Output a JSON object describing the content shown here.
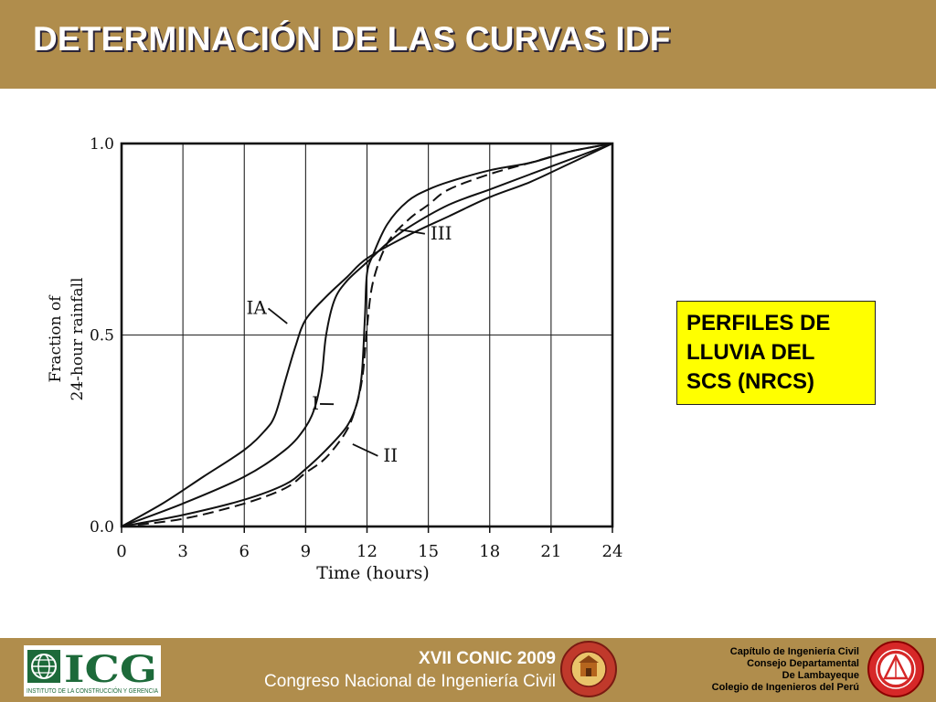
{
  "slide": {
    "title": "DETERMINACIÓN DE LAS CURVAS IDF",
    "callout_lines": [
      "PERFILES DE",
      "LLUVIA DEL",
      "SCS (NRCS)"
    ]
  },
  "footer": {
    "icg_logo_text": "ICG",
    "icg_tagline": "INSTITUTO DE LA CONSTRUCCIÓN Y GERENCIA",
    "conference_line1": "XVII  CONIC 2009",
    "conference_line2": "Congreso Nacional de Ingeniería Civil",
    "chapter_lines": [
      "Capítulo de Ingeniería Civil",
      "Consejo Departamental",
      "De Lambayeque",
      "Colegio de Ingenieros del Perú"
    ],
    "accent_color": "#b08d4c"
  },
  "chart_data": {
    "type": "line",
    "xlabel": "Time (hours)",
    "ylabel_lines": [
      "Fraction of",
      "24-hour rainfall"
    ],
    "xlim": [
      0,
      24
    ],
    "ylim": [
      0,
      1
    ],
    "x_ticks": [
      "0",
      "3",
      "6",
      "9",
      "12",
      "15",
      "18",
      "21",
      "24"
    ],
    "y_ticks": [
      "0.0",
      "0.5",
      "1.0"
    ],
    "grid": true,
    "series": [
      {
        "name": "IA",
        "dashed": false,
        "x": [
          0,
          2,
          4,
          6,
          7,
          7.5,
          8,
          8.5,
          9,
          10,
          11,
          12,
          14,
          16,
          18,
          20,
          22,
          24
        ],
        "y": [
          0,
          0.06,
          0.13,
          0.2,
          0.25,
          0.29,
          0.38,
          0.47,
          0.54,
          0.6,
          0.65,
          0.7,
          0.76,
          0.81,
          0.86,
          0.9,
          0.95,
          1.0
        ]
      },
      {
        "name": "I",
        "dashed": false,
        "x": [
          0,
          3,
          6,
          8,
          9,
          9.5,
          9.8,
          10,
          10.4,
          11,
          12,
          13,
          14,
          16,
          18,
          20,
          22,
          24
        ],
        "y": [
          0,
          0.06,
          0.13,
          0.2,
          0.26,
          0.32,
          0.4,
          0.5,
          0.59,
          0.64,
          0.69,
          0.74,
          0.78,
          0.84,
          0.88,
          0.92,
          0.96,
          1.0
        ]
      },
      {
        "name": "II",
        "dashed": false,
        "x": [
          0,
          3,
          6,
          8,
          9,
          10,
          11,
          11.5,
          11.75,
          11.9,
          12,
          12.3,
          13,
          14,
          15,
          16,
          18,
          20,
          22,
          24
        ],
        "y": [
          0,
          0.03,
          0.07,
          0.11,
          0.15,
          0.2,
          0.26,
          0.32,
          0.4,
          0.55,
          0.66,
          0.71,
          0.79,
          0.85,
          0.88,
          0.9,
          0.93,
          0.95,
          0.98,
          1.0
        ]
      },
      {
        "name": "III",
        "dashed": true,
        "x": [
          0,
          3,
          6,
          8,
          9,
          10,
          11,
          11.5,
          11.8,
          12,
          12.3,
          13,
          14,
          15,
          16,
          18,
          20,
          22,
          24
        ],
        "y": [
          0,
          0.02,
          0.06,
          0.1,
          0.14,
          0.18,
          0.25,
          0.32,
          0.4,
          0.52,
          0.64,
          0.74,
          0.8,
          0.84,
          0.88,
          0.92,
          0.95,
          0.98,
          1.0
        ]
      }
    ],
    "annotations": [
      {
        "text": "IA",
        "x": 6.1,
        "y": 0.555,
        "target_x": 8.1,
        "target_y": 0.53
      },
      {
        "text": "I",
        "x": 9.3,
        "y": 0.305,
        "target_x": 9.7,
        "target_y": 0.32
      },
      {
        "text": "II",
        "x": 12.8,
        "y": 0.17,
        "target_x": 11.3,
        "target_y": 0.215
      },
      {
        "text": "III",
        "x": 15.1,
        "y": 0.75,
        "target_x": 13.6,
        "target_y": 0.775
      }
    ]
  }
}
